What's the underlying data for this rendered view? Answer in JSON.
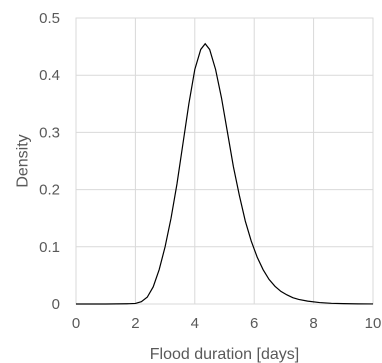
{
  "chart_data": {
    "type": "line",
    "title": "",
    "xlabel": "Flood duration [days]",
    "ylabel": "Density",
    "xlim": [
      0,
      10
    ],
    "ylim": [
      0,
      0.5
    ],
    "x_ticks": [
      "0",
      "2",
      "4",
      "6",
      "8",
      "10"
    ],
    "y_ticks": [
      "0",
      "0.1",
      "0.2",
      "0.3",
      "0.4",
      "0.5"
    ],
    "grid": true,
    "legend": "none",
    "colors": {
      "line": "#000000",
      "grid": "#d9d9d9",
      "frame": "#d9d9d9",
      "text": "#595959"
    },
    "series": [
      {
        "x": [
          0,
          1.0,
          1.8,
          2.0,
          2.2,
          2.4,
          2.6,
          2.8,
          3.0,
          3.2,
          3.4,
          3.6,
          3.8,
          4.0,
          4.2,
          4.35,
          4.5,
          4.7,
          4.9,
          5.1,
          5.3,
          5.5,
          5.7,
          5.9,
          6.1,
          6.3,
          6.5,
          6.7,
          6.9,
          7.1,
          7.3,
          7.5,
          7.8,
          8.2,
          8.6,
          9.0,
          9.5,
          10.0
        ],
        "y": [
          0,
          0,
          0.0005,
          0.001,
          0.004,
          0.012,
          0.03,
          0.06,
          0.1,
          0.15,
          0.21,
          0.28,
          0.35,
          0.41,
          0.445,
          0.455,
          0.445,
          0.41,
          0.36,
          0.3,
          0.24,
          0.19,
          0.145,
          0.11,
          0.082,
          0.06,
          0.043,
          0.031,
          0.022,
          0.016,
          0.011,
          0.008,
          0.005,
          0.0025,
          0.0012,
          0.0006,
          0.0002,
          0.0001
        ]
      }
    ]
  }
}
